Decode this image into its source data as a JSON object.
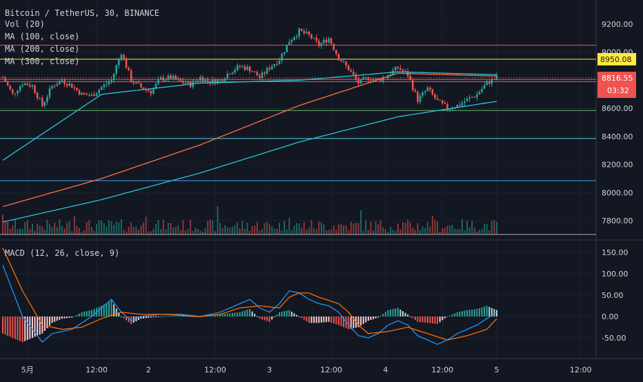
{
  "header": {
    "symbol_line": "Bitcoin / TetherUS, 30, BINANCE",
    "vol_label": "Vol (20)",
    "ma_labels": [
      "MA (100, close)",
      "MA (200, close)",
      "MA (300, close)"
    ],
    "macd_label": "MACD (12, 26, close, 9)"
  },
  "colors": {
    "background": "#131722",
    "up": "#26a69a",
    "down": "#ef5350",
    "ma100": "#26c6da",
    "ma200": "#ff7043",
    "ma300": "#26c6da",
    "macd": "#2196f3",
    "signal": "#ff6d00",
    "hline_red": "#ef5350",
    "hline_yellow": "#ffeb3b",
    "hline_green": "#66bb6a",
    "hline_cyan": "#4dd0e1",
    "hline_blue": "#42a5f5"
  },
  "chart_data": [
    {
      "type": "candlestick",
      "title": "Bitcoin / TetherUS, 30, BINANCE",
      "x_ticks": [
        "5月",
        "12:00",
        "2",
        "12:00",
        "3",
        "12:00",
        "4",
        "12:00",
        "5",
        "12:00"
      ],
      "y_ticks": [
        "9200.00",
        "9000.00",
        "8800.00",
        "8600.00",
        "8400.00",
        "8200.00",
        "8000.00",
        "7800.00"
      ],
      "ylim": [
        7680,
        9260
      ],
      "last_price": "8816.55",
      "countdown": "03:32",
      "marked_level": "8950.08",
      "horizontal_levels": [
        {
          "price": 9050,
          "color_key": "hline_red"
        },
        {
          "price": 8950,
          "color_key": "hline_yellow"
        },
        {
          "price": 8805,
          "color_key": "hline_red"
        },
        {
          "price": 8790,
          "color_key": "hline_red"
        },
        {
          "price": 8585,
          "color_key": "hline_green"
        },
        {
          "price": 8385,
          "color_key": "hline_cyan"
        },
        {
          "price": 8085,
          "color_key": "hline_blue"
        }
      ],
      "close_anchors": [
        [
          0,
          8820
        ],
        [
          4,
          8700
        ],
        [
          8,
          8780
        ],
        [
          12,
          8760
        ],
        [
          16,
          8620
        ],
        [
          20,
          8760
        ],
        [
          24,
          8800
        ],
        [
          28,
          8760
        ],
        [
          32,
          8700
        ],
        [
          36,
          8690
        ],
        [
          40,
          8750
        ],
        [
          44,
          8800
        ],
        [
          48,
          9000
        ],
        [
          52,
          8800
        ],
        [
          56,
          8750
        ],
        [
          60,
          8720
        ],
        [
          64,
          8810
        ],
        [
          68,
          8820
        ],
        [
          72,
          8790
        ],
        [
          76,
          8770
        ],
        [
          80,
          8820
        ],
        [
          84,
          8790
        ],
        [
          88,
          8800
        ],
        [
          92,
          8860
        ],
        [
          96,
          8900
        ],
        [
          100,
          8880
        ],
        [
          104,
          8820
        ],
        [
          108,
          8890
        ],
        [
          112,
          8950
        ],
        [
          116,
          9080
        ],
        [
          120,
          9150
        ],
        [
          124,
          9120
        ],
        [
          128,
          9050
        ],
        [
          132,
          9100
        ],
        [
          136,
          8960
        ],
        [
          140,
          8880
        ],
        [
          144,
          8780
        ],
        [
          148,
          8820
        ],
        [
          152,
          8800
        ],
        [
          156,
          8840
        ],
        [
          160,
          8890
        ],
        [
          164,
          8840
        ],
        [
          168,
          8660
        ],
        [
          172,
          8740
        ],
        [
          176,
          8650
        ],
        [
          180,
          8600
        ],
        [
          184,
          8620
        ],
        [
          188,
          8660
        ],
        [
          192,
          8700
        ],
        [
          196,
          8780
        ],
        [
          200,
          8820
        ]
      ],
      "ma_series": [
        {
          "key": "ma100",
          "points": [
            [
              0,
              8230
            ],
            [
              40,
              8700
            ],
            [
              80,
              8780
            ],
            [
              120,
              8800
            ],
            [
              160,
              8860
            ],
            [
              200,
              8840
            ]
          ]
        },
        {
          "key": "ma200",
          "points": [
            [
              0,
              7900
            ],
            [
              40,
              8100
            ],
            [
              80,
              8340
            ],
            [
              120,
              8620
            ],
            [
              160,
              8850
            ],
            [
              200,
              8830
            ]
          ]
        },
        {
          "key": "ma300",
          "points": [
            [
              0,
              7790
            ],
            [
              40,
              7950
            ],
            [
              80,
              8140
            ],
            [
              120,
              8360
            ],
            [
              160,
              8540
            ],
            [
              200,
              8650
            ]
          ]
        }
      ]
    },
    {
      "type": "line",
      "title": "MACD (12, 26, close, 9)",
      "y_ticks": [
        "150.00",
        "100.00",
        "50.00",
        "0.00",
        "-50.00"
      ],
      "ylim": [
        -100,
        170
      ],
      "series": [
        {
          "key": "macd",
          "points": [
            [
              0,
              120
            ],
            [
              8,
              0
            ],
            [
              16,
              -60
            ],
            [
              20,
              -40
            ],
            [
              28,
              -30
            ],
            [
              36,
              0
            ],
            [
              40,
              20
            ],
            [
              44,
              40
            ],
            [
              48,
              10
            ],
            [
              52,
              -10
            ],
            [
              56,
              0
            ],
            [
              64,
              5
            ],
            [
              72,
              5
            ],
            [
              80,
              0
            ],
            [
              88,
              10
            ],
            [
              96,
              30
            ],
            [
              100,
              40
            ],
            [
              104,
              20
            ],
            [
              108,
              10
            ],
            [
              112,
              30
            ],
            [
              116,
              60
            ],
            [
              120,
              55
            ],
            [
              124,
              40
            ],
            [
              128,
              30
            ],
            [
              132,
              25
            ],
            [
              136,
              10
            ],
            [
              140,
              -20
            ],
            [
              144,
              -45
            ],
            [
              148,
              -50
            ],
            [
              152,
              -40
            ],
            [
              156,
              -20
            ],
            [
              160,
              -10
            ],
            [
              164,
              -20
            ],
            [
              168,
              -45
            ],
            [
              172,
              -55
            ],
            [
              176,
              -65
            ],
            [
              180,
              -55
            ],
            [
              184,
              -40
            ],
            [
              188,
              -30
            ],
            [
              192,
              -20
            ],
            [
              196,
              -5
            ],
            [
              200,
              10
            ]
          ]
        },
        {
          "key": "signal",
          "points": [
            [
              0,
              160
            ],
            [
              8,
              60
            ],
            [
              16,
              -20
            ],
            [
              24,
              -30
            ],
            [
              32,
              -25
            ],
            [
              40,
              -5
            ],
            [
              48,
              10
            ],
            [
              56,
              5
            ],
            [
              64,
              5
            ],
            [
              72,
              3
            ],
            [
              80,
              0
            ],
            [
              88,
              5
            ],
            [
              96,
              20
            ],
            [
              104,
              25
            ],
            [
              112,
              20
            ],
            [
              116,
              45
            ],
            [
              120,
              55
            ],
            [
              124,
              55
            ],
            [
              128,
              45
            ],
            [
              136,
              30
            ],
            [
              140,
              10
            ],
            [
              144,
              -20
            ],
            [
              148,
              -40
            ],
            [
              156,
              -35
            ],
            [
              164,
              -25
            ],
            [
              172,
              -40
            ],
            [
              180,
              -55
            ],
            [
              188,
              -45
            ],
            [
              196,
              -30
            ],
            [
              200,
              -5
            ]
          ]
        }
      ]
    }
  ]
}
